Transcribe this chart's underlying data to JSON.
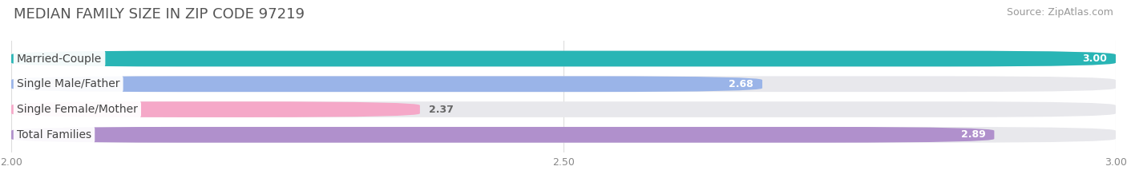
{
  "title": "MEDIAN FAMILY SIZE IN ZIP CODE 97219",
  "source": "Source: ZipAtlas.com",
  "categories": [
    "Married-Couple",
    "Single Male/Father",
    "Single Female/Mother",
    "Total Families"
  ],
  "values": [
    3.0,
    2.68,
    2.37,
    2.89
  ],
  "bar_colors": [
    "#29b5b5",
    "#9ab4e8",
    "#f5a8c8",
    "#b090cc"
  ],
  "value_label_colors": [
    "white",
    "white",
    "#666666",
    "white"
  ],
  "xlim": [
    2.0,
    3.0
  ],
  "xticks": [
    2.0,
    2.5,
    3.0
  ],
  "xtick_labels": [
    "2.00",
    "2.50",
    "3.00"
  ],
  "bar_height": 0.62,
  "title_fontsize": 13,
  "source_fontsize": 9,
  "label_fontsize": 10,
  "value_fontsize": 9,
  "tick_fontsize": 9,
  "background_color": "#ffffff",
  "bar_bg_color": "#e8e8ec"
}
